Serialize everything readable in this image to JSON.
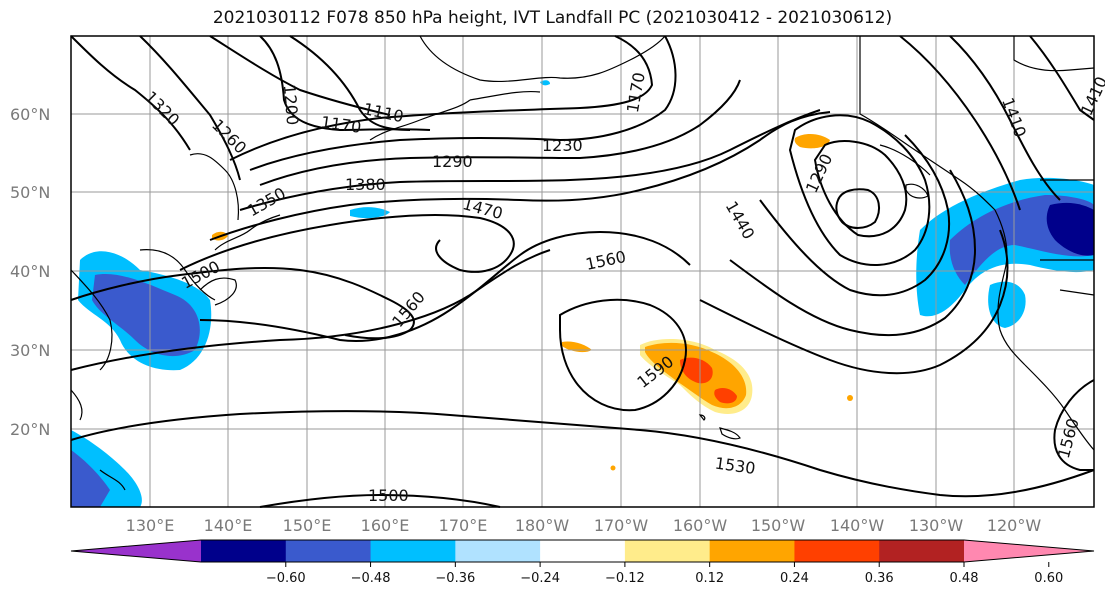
{
  "title": "2021030112 F078 850 hPa height, IVT Landfall PC (2021030412 - 2021030612)",
  "lat_labels": [
    "60°N",
    "50°N",
    "40°N",
    "30°N",
    "20°N"
  ],
  "lon_labels": [
    "130°E",
    "140°E",
    "150°E",
    "160°E",
    "170°E",
    "180°W",
    "170°W",
    "160°W",
    "150°W",
    "140°W",
    "130°W",
    "120°W"
  ],
  "contour_labels": [
    "1320",
    "1260",
    "1200",
    "1170",
    "1110",
    "1170",
    "1290",
    "1230",
    "1380",
    "1350",
    "1470",
    "1290",
    "1440",
    "1500",
    "1560",
    "1560",
    "1590",
    "1530",
    "1500",
    "1560",
    "1410",
    "1410"
  ],
  "colorbar": {
    "colors": [
      "#9932cc",
      "#00008b",
      "#3a5acd",
      "#00bfff",
      "#b0e2ff",
      "#ffffff",
      "#ffec8b",
      "#ffa500",
      "#ff4000",
      "#b22222",
      "#ff88b0"
    ],
    "tick_labels": [
      "−0.60",
      "−0.48",
      "−0.36",
      "−0.24",
      "−0.12",
      "0.12",
      "0.24",
      "0.36",
      "0.48",
      "0.60"
    ]
  }
}
